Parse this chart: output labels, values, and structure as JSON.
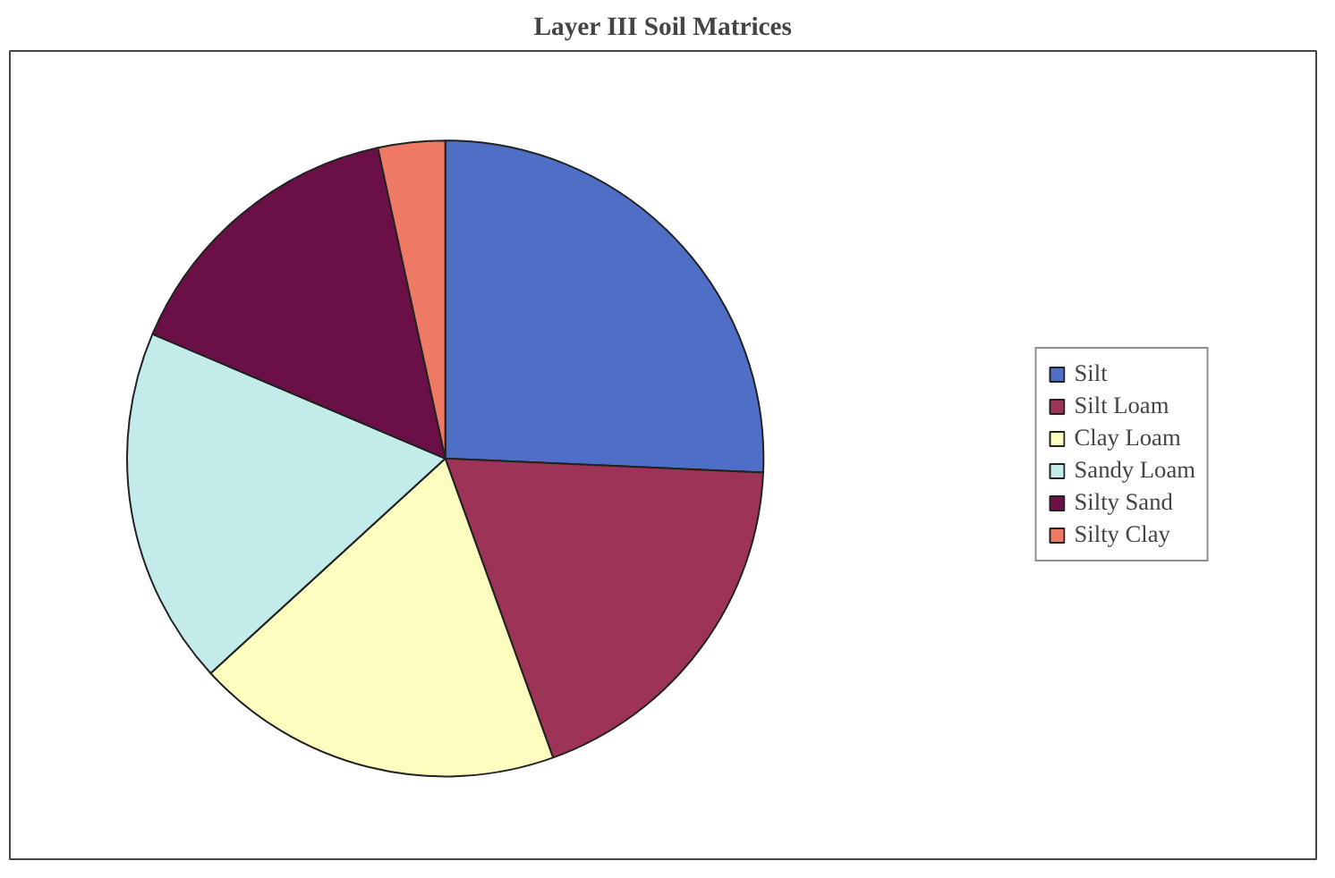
{
  "chart_data": {
    "type": "pie",
    "title": "Layer III Soil Matrices",
    "categories": [
      "Silt",
      "Silt Loam",
      "Clay Loam",
      "Sandy Loam",
      "Silty Sand",
      "Silty Clay"
    ],
    "values": [
      25.7,
      18.8,
      18.7,
      18.2,
      15.2,
      3.4
    ],
    "colors": [
      "#4f6fc6",
      "#9e3358",
      "#fdfdc0",
      "#c2ebea",
      "#6a1046",
      "#ee7a66"
    ],
    "legend": "right"
  }
}
